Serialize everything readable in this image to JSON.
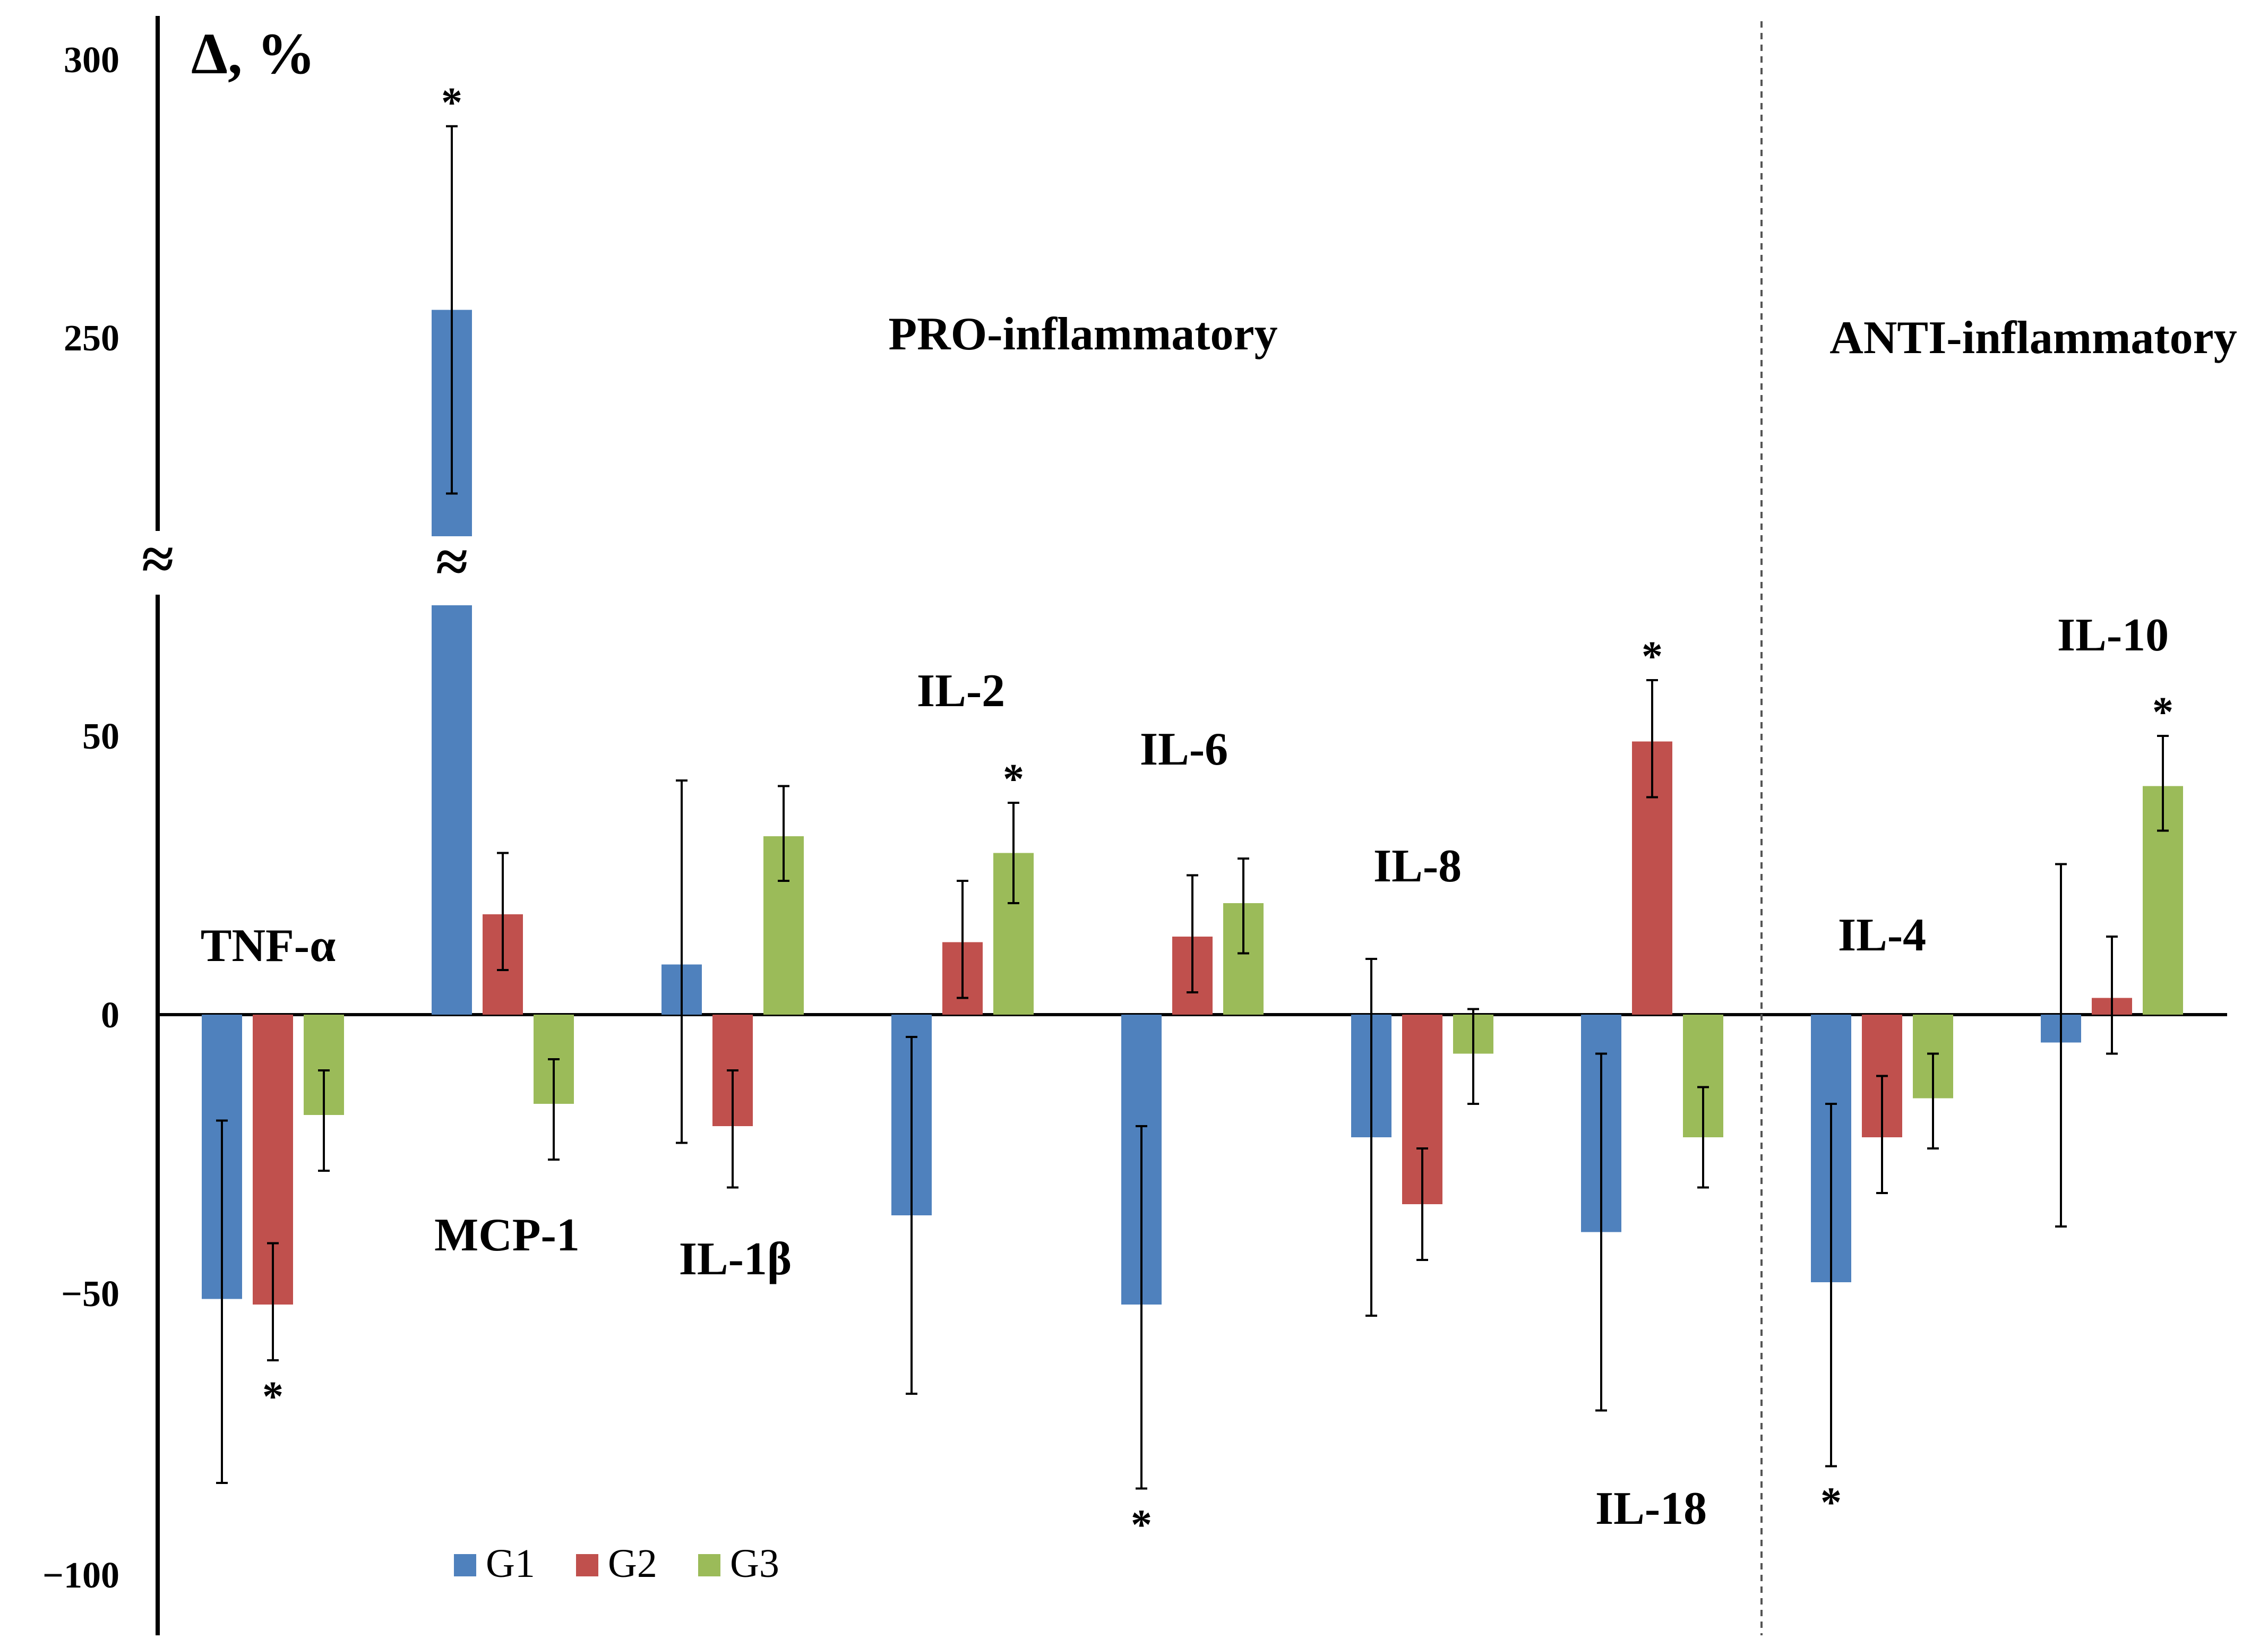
{
  "chart_data": {
    "type": "bar",
    "ylabel": "Δ, %",
    "y_ticks": [
      "300",
      "250",
      "50",
      "0",
      "−50",
      "−100"
    ],
    "y_break": "≈",
    "ylim": [
      -100,
      300
    ],
    "axis_break": {
      "from": 90,
      "to": 210
    },
    "groups": [
      {
        "label": "PRO-inflammatory",
        "categories": [
          "TNF-α",
          "MCP-1",
          "IL-1β",
          "IL-2",
          "IL-6",
          "IL-8",
          "IL-18"
        ]
      },
      {
        "label": "ANTI-inflammatory",
        "categories": [
          "IL-4",
          "IL-10"
        ]
      }
    ],
    "categories": [
      "TNF-α",
      "MCP-1",
      "IL-1β",
      "IL-2",
      "IL-6",
      "IL-8",
      "IL-18",
      "IL-4",
      "IL-10"
    ],
    "series": [
      {
        "name": "G1",
        "color": "#4f81bd",
        "values": [
          -51,
          255,
          9,
          -36,
          -52,
          -22,
          -39,
          -48,
          -5
        ],
        "err_low": [
          -84,
          222,
          -23,
          -68,
          -85,
          -54,
          -71,
          -81,
          -38
        ],
        "err_high": [
          -19,
          288,
          42,
          -4,
          -20,
          10,
          -7,
          -16,
          27
        ],
        "significant": [
          false,
          true,
          false,
          false,
          true,
          false,
          false,
          true,
          false
        ]
      },
      {
        "name": "G2",
        "color": "#c0504d",
        "values": [
          -52,
          18,
          -20,
          13,
          14,
          -34,
          49,
          -22,
          3
        ],
        "err_low": [
          -62,
          8,
          -31,
          3,
          4,
          -44,
          39,
          -32,
          -7
        ],
        "err_high": [
          -41,
          29,
          -10,
          24,
          25,
          -24,
          60,
          -11,
          14
        ],
        "significant": [
          true,
          false,
          false,
          false,
          false,
          false,
          true,
          false,
          false
        ]
      },
      {
        "name": "G3",
        "color": "#9bbb59",
        "values": [
          -18,
          -16,
          32,
          29,
          20,
          -7,
          -22,
          -15,
          41
        ],
        "err_low": [
          -28,
          -26,
          24,
          20,
          11,
          -16,
          -31,
          -24,
          33
        ],
        "err_high": [
          -10,
          -8,
          41,
          38,
          28,
          1,
          -13,
          -7,
          50
        ],
        "significant": [
          false,
          false,
          false,
          true,
          false,
          false,
          false,
          false,
          true
        ]
      }
    ],
    "significance_marker": "*",
    "legend": {
      "placement": "bottom-left"
    },
    "grid": false
  }
}
